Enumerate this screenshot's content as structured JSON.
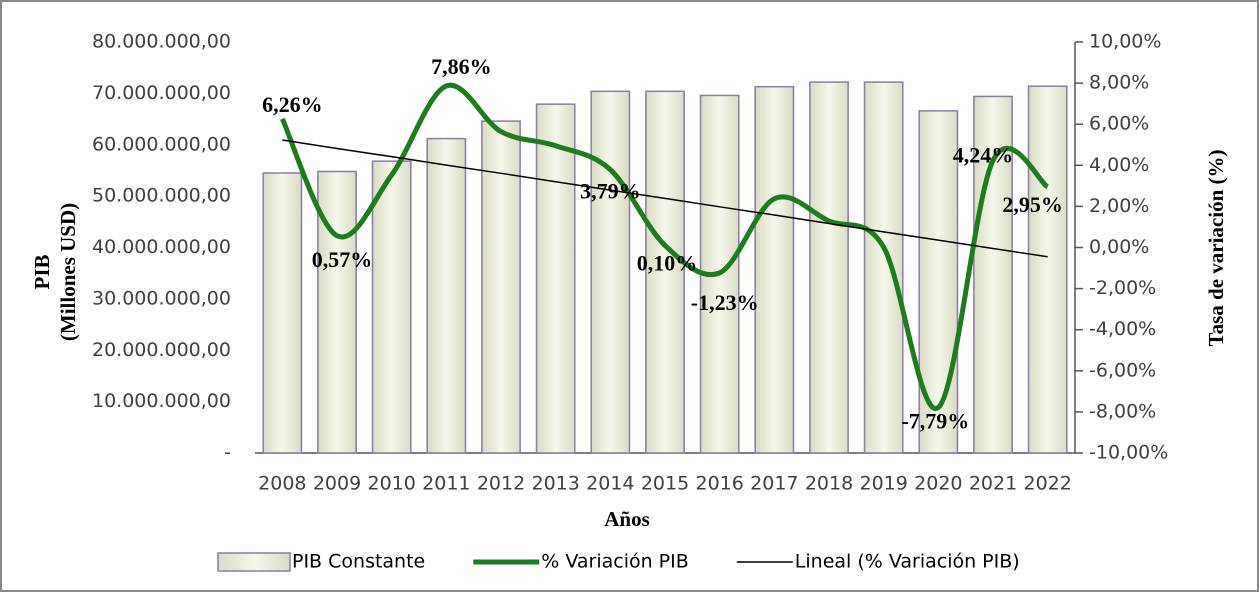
{
  "chart_data": {
    "type": "bar-line",
    "categories": [
      "2008",
      "2009",
      "2010",
      "2011",
      "2012",
      "2013",
      "2014",
      "2015",
      "2016",
      "2017",
      "2018",
      "2019",
      "2020",
      "2021",
      "2022"
    ],
    "x_label": "Años",
    "y_label": [
      "PIB",
      "(Millones USD)"
    ],
    "y2_label": "Tasa de variación (%)",
    "ylim": [
      0,
      80000000
    ],
    "yticks": [
      {
        "value": 0,
        "label": "-"
      },
      {
        "value": 10000000,
        "label": "10.000.000,00"
      },
      {
        "value": 20000000,
        "label": "20.000.000,00"
      },
      {
        "value": 30000000,
        "label": "30.000.000,00"
      },
      {
        "value": 40000000,
        "label": "40.000.000,00"
      },
      {
        "value": 50000000,
        "label": "50.000.000,00"
      },
      {
        "value": 60000000,
        "label": "60.000.000,00"
      },
      {
        "value": 70000000,
        "label": "70.000.000,00"
      },
      {
        "value": 80000000,
        "label": "80.000.000,00"
      }
    ],
    "y2lim": [
      -10,
      10
    ],
    "y2ticks": [
      {
        "value": -10,
        "label": "-10,00%"
      },
      {
        "value": -8,
        "label": "-8,00%"
      },
      {
        "value": -6,
        "label": "-6,00%"
      },
      {
        "value": -4,
        "label": "-4,00%"
      },
      {
        "value": -2,
        "label": "-2,00%"
      },
      {
        "value": 0,
        "label": "0,00%"
      },
      {
        "value": 2,
        "label": "2,00%"
      },
      {
        "value": 4,
        "label": "4,00%"
      },
      {
        "value": 6,
        "label": "6,00%"
      },
      {
        "value": 8,
        "label": "8,00%"
      },
      {
        "value": 10,
        "label": "10,00%"
      }
    ],
    "legend": "bottom",
    "series": [
      {
        "name": "PIB Constante",
        "kind": "bar",
        "axis": "y",
        "color": "#eef0dc",
        "edgecolor": "#8c7aa8",
        "values": [
          54500000,
          54800000,
          56800000,
          61200000,
          64600000,
          67900000,
          70400000,
          70400000,
          69600000,
          71300000,
          72200000,
          72200000,
          66600000,
          69400000,
          71400000
        ]
      },
      {
        "name": "% Variación PIB",
        "kind": "line",
        "axis": "y2",
        "color": "#1e7b1e",
        "smooth": true,
        "values": [
          6.26,
          0.57,
          3.53,
          7.86,
          5.64,
          4.95,
          3.79,
          0.1,
          -1.23,
          2.37,
          1.29,
          0.01,
          -7.79,
          4.24,
          2.95
        ],
        "value_labels": [
          "6,26%",
          "0,57%",
          null,
          "7,86%",
          null,
          null,
          "3,79%",
          "0,10%",
          "-1,23%",
          null,
          null,
          null,
          "-7,79%",
          "4,24%",
          "2,95%"
        ]
      },
      {
        "name": "Lineal (% Variación PIB)",
        "kind": "line",
        "axis": "y2",
        "color": "#000000",
        "smooth": false,
        "values": [
          5.23,
          4.82,
          4.42,
          4.01,
          3.61,
          3.2,
          2.79,
          2.39,
          1.98,
          1.58,
          1.17,
          0.76,
          0.36,
          -0.05,
          -0.45
        ]
      }
    ]
  }
}
